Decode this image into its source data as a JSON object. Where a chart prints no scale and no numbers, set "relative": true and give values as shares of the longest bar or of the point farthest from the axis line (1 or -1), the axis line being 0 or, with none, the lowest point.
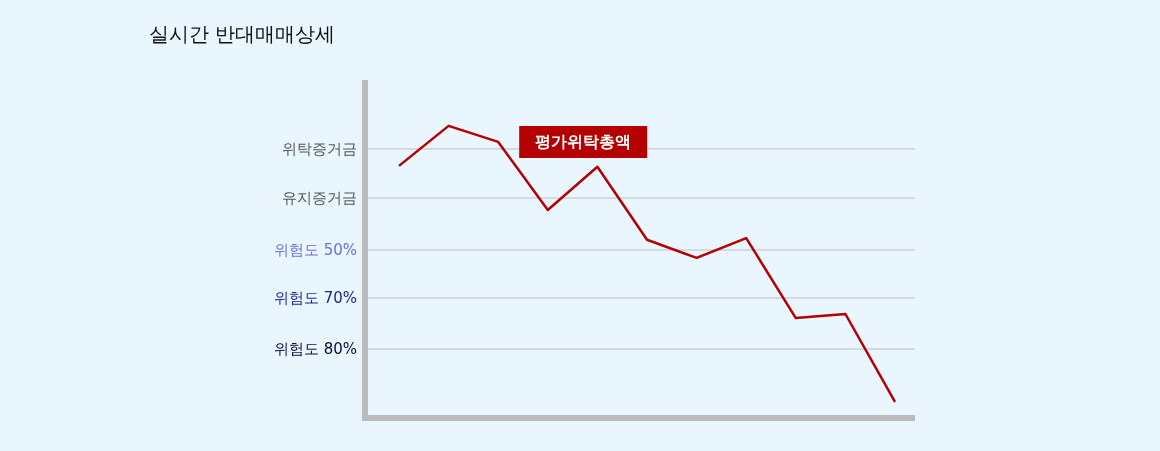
{
  "chart_data": {
    "type": "line",
    "title": "실시간 반대매매상세",
    "relative": true,
    "categories": [
      null,
      null,
      null,
      null,
      null,
      null,
      null,
      null,
      null,
      null,
      null
    ],
    "series": [
      {
        "color": "#b40000",
        "values": [
          0.863,
          1,
          0.945,
          0.712,
          0.86,
          0.61,
          0.548,
          0.616,
          0.342,
          0.356,
          0.055
        ]
      }
    ],
    "ref_lines": [
      {
        "axis": "y",
        "value": 0.921,
        "label": "위탁증거금",
        "color": "#bdbdbd"
      },
      {
        "axis": "y",
        "value": 0.753,
        "label": "유지증거금",
        "color": "#bdbdbd"
      },
      {
        "axis": "y",
        "value": 0.575,
        "label": "위험도 50%",
        "color": "#bdbdbd"
      },
      {
        "axis": "y",
        "value": 0.411,
        "label": "위험도 70%",
        "color": "#bdbdbd"
      },
      {
        "axis": "y",
        "value": 0.236,
        "label": "위험도 80%",
        "color": "#bdbdbd"
      }
    ],
    "annotations": [
      "평가위탁총액"
    ],
    "marker": "none",
    "line_style": "solid"
  }
}
